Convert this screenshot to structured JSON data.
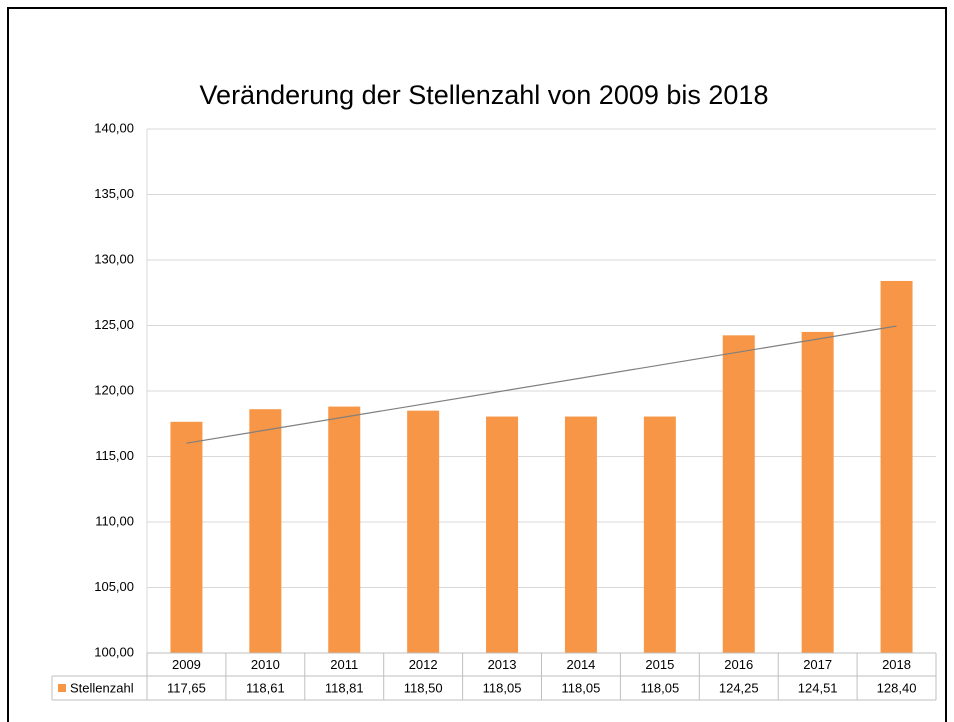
{
  "chart_data": {
    "type": "bar",
    "title": "Veränderung der Stellenzahl von 2009 bis 2018",
    "categories": [
      "2009",
      "2010",
      "2011",
      "2012",
      "2013",
      "2014",
      "2015",
      "2016",
      "2017",
      "2018"
    ],
    "series": [
      {
        "name": "Stellenzahl",
        "color": "#f79646",
        "values": [
          117.65,
          118.61,
          118.81,
          118.5,
          118.05,
          118.05,
          118.05,
          124.25,
          124.51,
          128.4
        ],
        "value_labels": [
          "117,65",
          "118,61",
          "118,81",
          "118,50",
          "118,05",
          "118,05",
          "118,05",
          "124,25",
          "124,51",
          "128,40"
        ]
      }
    ],
    "ylim": [
      100,
      140
    ],
    "yticks": [
      {
        "value": 100,
        "label": "100,00"
      },
      {
        "value": 105,
        "label": "105,00"
      },
      {
        "value": 110,
        "label": "110,00"
      },
      {
        "value": 115,
        "label": "115,00"
      },
      {
        "value": 120,
        "label": "120,00"
      },
      {
        "value": 125,
        "label": "125,00"
      },
      {
        "value": 130,
        "label": "130,00"
      },
      {
        "value": 135,
        "label": "135,00"
      },
      {
        "value": 140,
        "label": "140,00"
      }
    ],
    "grid": true,
    "trendline": "linear",
    "data_table": true
  }
}
